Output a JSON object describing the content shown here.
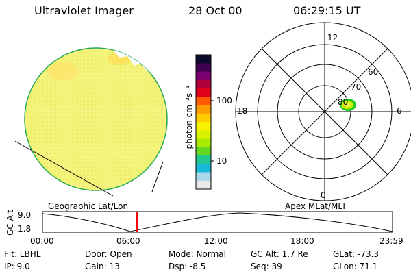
{
  "header": {
    "instrument": "Ultraviolet Imager",
    "date": "28 Oct 00",
    "time": "06:29:15 UT"
  },
  "colorbar": {
    "label": "photon cm⁻²s⁻¹",
    "ticks": [
      "100",
      "10"
    ],
    "colors": [
      "#0a0a2a",
      "#400050",
      "#7a0070",
      "#b0003a",
      "#e0001a",
      "#ff5a00",
      "#ff9d00",
      "#ffcc00",
      "#f6f200",
      "#d8f200",
      "#a8ea00",
      "#64d820",
      "#20c890",
      "#18b8d8",
      "#a8d8e8",
      "#e8e8e8"
    ]
  },
  "polar_plot": {
    "mlt_labels": {
      "top": "12",
      "left": "18",
      "right": "6",
      "bottom": "0"
    },
    "lat_labels": [
      "60",
      "70",
      "80"
    ],
    "label": "Apex MLat/MLT"
  },
  "globe": {
    "label": "Geographic Lat/Lon",
    "fill": "#f4f47a",
    "edge": "#22aa55"
  },
  "timeline": {
    "ylabel": "GC Alt",
    "ymax": "9.0",
    "ymin": "1.8",
    "xticks": [
      "00:00",
      "06:00",
      "12:00",
      "18:00",
      "23:59"
    ],
    "current_time_fraction": 0.27,
    "marker_color": "#ff0000"
  },
  "info": {
    "flt": "Flt:  LBHL",
    "ip": "IP:  9.0",
    "door": "Door:  Open",
    "gain": "Gain:  13",
    "mode": "Mode:  Normal",
    "dsp": "Dsp:      -8.5",
    "gcalt": "GC Alt:  1.7 Re",
    "seq": "Seq:  39",
    "glat": "GLat:  -73.3",
    "glon": "GLon:   71.1"
  }
}
